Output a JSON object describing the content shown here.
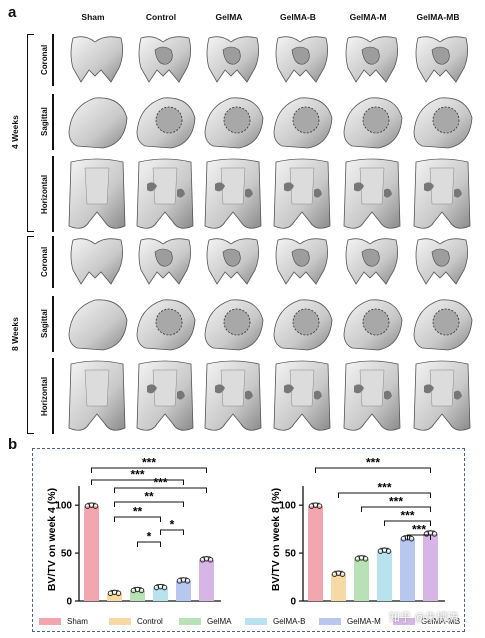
{
  "panel_a": {
    "letter": "a",
    "columns": [
      "Sham",
      "Control",
      "GelMA",
      "GelMA-B",
      "GelMA-M",
      "GelMA-MB"
    ],
    "groups": [
      {
        "label": "4 Weeks",
        "views": [
          "Coronal",
          "Sagittal",
          "Horizontal"
        ]
      },
      {
        "label": "8 Weeks",
        "views": [
          "Coronal",
          "Sagittal",
          "Horizontal"
        ]
      }
    ]
  },
  "panel_b": {
    "letter": "b",
    "legend": [
      {
        "name": "Sham",
        "color": "#f2a6ad"
      },
      {
        "name": "Control",
        "color": "#f7d9a6"
      },
      {
        "name": "GelMA",
        "color": "#b8e2b5"
      },
      {
        "name": "GelMA-B",
        "color": "#b9e2ef"
      },
      {
        "name": "GelMA-M",
        "color": "#b7c7ee"
      },
      {
        "name": "GelMA-MB",
        "color": "#d7b5e6"
      }
    ],
    "watermark": "知乎 @朱博涛"
  },
  "chart_data": [
    {
      "type": "bar",
      "categories": [
        "Sham",
        "Control",
        "GelMA",
        "GelMA-B",
        "GelMA-M",
        "GelMA-MB"
      ],
      "values": [
        99,
        8,
        11,
        14,
        21,
        43
      ],
      "ylabel": "BV/TV on week 4 (%)",
      "ylim": [
        0,
        120
      ],
      "yticks": [
        0,
        50,
        100
      ],
      "significance": [
        "***",
        "***",
        "***",
        "**",
        "**",
        "*",
        "*"
      ]
    },
    {
      "type": "bar",
      "categories": [
        "Sham",
        "Control",
        "GelMA",
        "GelMA-B",
        "GelMA-M",
        "GelMA-MB"
      ],
      "values": [
        99,
        28,
        44,
        52,
        65,
        70
      ],
      "ylabel": "BV/TV on week 8 (%)",
      "ylim": [
        0,
        120
      ],
      "yticks": [
        0,
        50,
        100
      ],
      "significance": [
        "***",
        "***",
        "***",
        "***",
        "***"
      ]
    }
  ]
}
